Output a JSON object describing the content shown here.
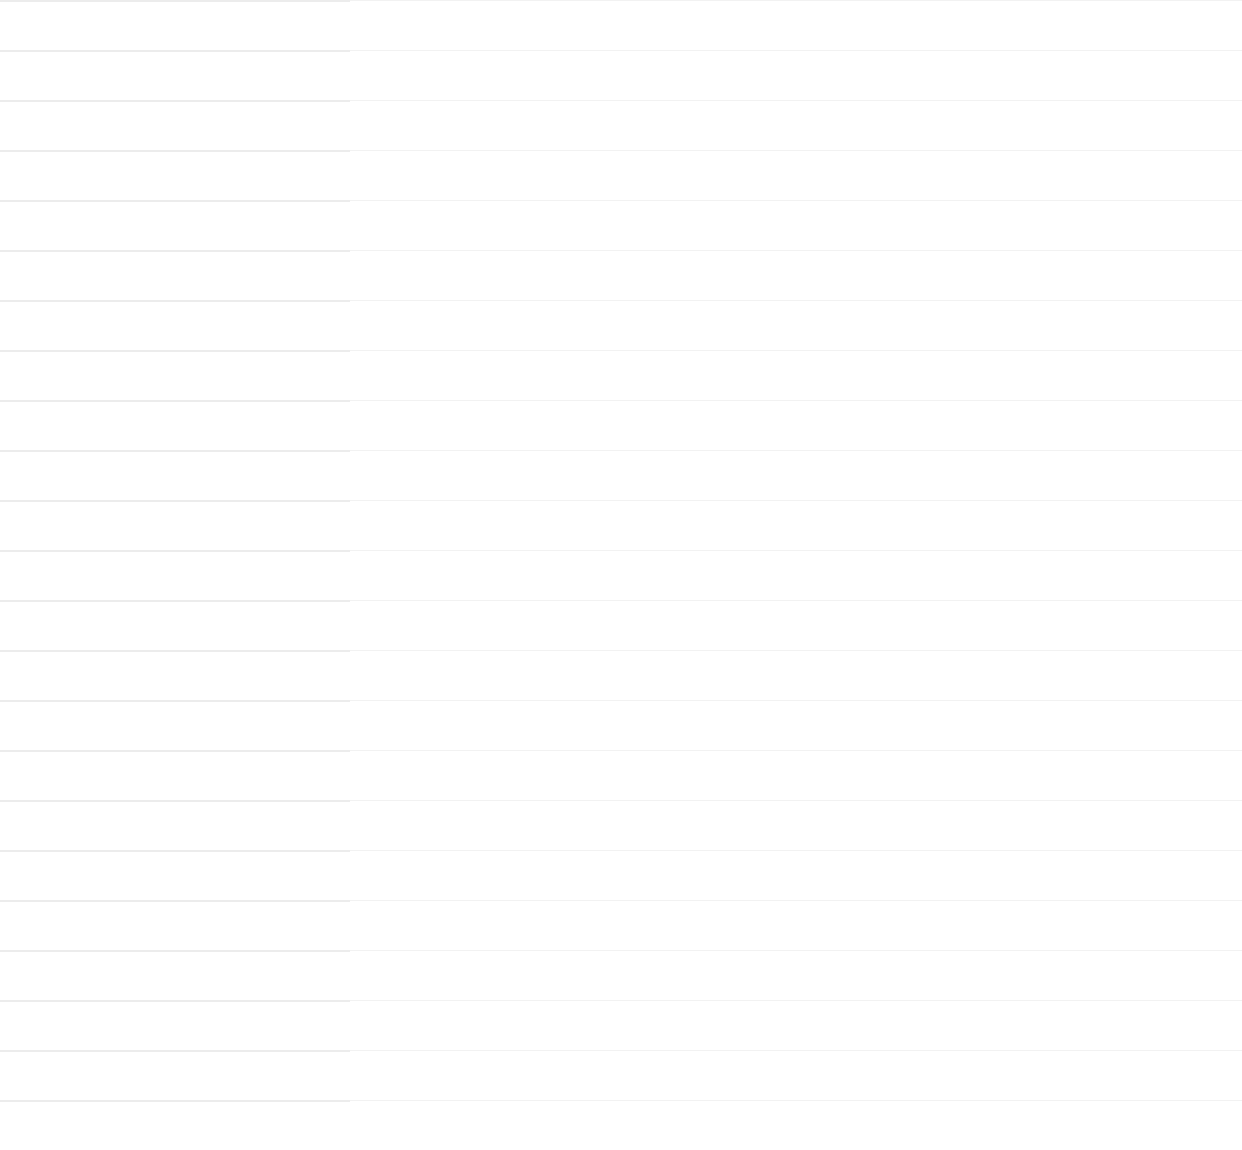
{
  "colors": {
    "left_divider": "#ececec",
    "right_divider": "#f2f2f2"
  }
}
